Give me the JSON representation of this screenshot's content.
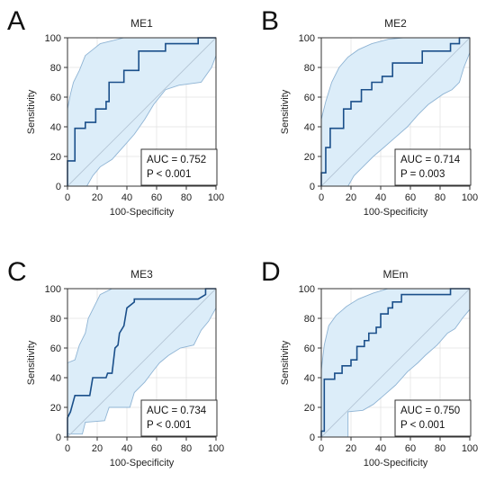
{
  "chart_data": [
    {
      "type": "line",
      "panel_letter": "A",
      "title": "ME1",
      "xlabel": "100-Specificity",
      "ylabel": "Sensitivity",
      "xlim": [
        0,
        100
      ],
      "ylim": [
        0,
        100
      ],
      "xticks": [
        0,
        20,
        40,
        60,
        80,
        100
      ],
      "yticks": [
        0,
        20,
        40,
        60,
        80,
        100
      ],
      "grid": true,
      "auc_text": "AUC = 0.752",
      "p_text": "P < 0.001",
      "roc": [
        [
          0,
          0
        ],
        [
          0,
          17
        ],
        [
          5,
          17
        ],
        [
          5,
          39
        ],
        [
          12,
          39
        ],
        [
          12,
          43
        ],
        [
          19,
          43
        ],
        [
          19,
          52
        ],
        [
          26,
          52
        ],
        [
          26,
          57
        ],
        [
          28,
          57
        ],
        [
          28,
          70
        ],
        [
          38,
          70
        ],
        [
          38,
          78
        ],
        [
          48,
          78
        ],
        [
          48,
          91
        ],
        [
          66,
          91
        ],
        [
          66,
          96
        ],
        [
          88,
          96
        ],
        [
          88,
          100
        ],
        [
          100,
          100
        ]
      ],
      "ci_upper": [
        [
          0,
          0
        ],
        [
          0,
          52
        ],
        [
          2,
          62
        ],
        [
          4,
          70
        ],
        [
          8,
          78
        ],
        [
          12,
          88
        ],
        [
          17,
          92
        ],
        [
          22,
          96
        ],
        [
          30,
          98
        ],
        [
          38,
          100
        ],
        [
          100,
          100
        ]
      ],
      "ci_lower": [
        [
          0,
          0
        ],
        [
          13,
          0
        ],
        [
          17,
          7
        ],
        [
          22,
          13
        ],
        [
          30,
          18
        ],
        [
          38,
          27
        ],
        [
          45,
          35
        ],
        [
          52,
          45
        ],
        [
          58,
          55
        ],
        [
          66,
          65
        ],
        [
          75,
          68
        ],
        [
          90,
          70
        ],
        [
          97,
          80
        ],
        [
          100,
          88
        ]
      ],
      "series": [
        {
          "name": "",
          "color": "#1a4f8a"
        }
      ],
      "colors": {
        "roc": "#1a4f8a",
        "ci_fill": "#dcedf9",
        "ci_edge": "#8fb4d4",
        "diagonal": "#b5c6d6"
      }
    },
    {
      "type": "line",
      "panel_letter": "B",
      "title": "ME2",
      "xlabel": "100-Specificity",
      "ylabel": "Sensitivity",
      "xlim": [
        0,
        100
      ],
      "ylim": [
        0,
        100
      ],
      "xticks": [
        0,
        20,
        40,
        60,
        80,
        100
      ],
      "yticks": [
        0,
        20,
        40,
        60,
        80,
        100
      ],
      "grid": true,
      "auc_text": "AUC = 0.714",
      "p_text": "P = 0.003",
      "roc": [
        [
          0,
          0
        ],
        [
          0,
          9
        ],
        [
          3,
          9
        ],
        [
          3,
          26
        ],
        [
          6,
          26
        ],
        [
          6,
          39
        ],
        [
          15,
          39
        ],
        [
          15,
          52
        ],
        [
          20,
          52
        ],
        [
          20,
          57
        ],
        [
          27,
          57
        ],
        [
          27,
          65
        ],
        [
          34,
          65
        ],
        [
          34,
          70
        ],
        [
          41,
          70
        ],
        [
          41,
          74
        ],
        [
          48,
          74
        ],
        [
          48,
          83
        ],
        [
          68,
          83
        ],
        [
          68,
          91
        ],
        [
          87,
          91
        ],
        [
          87,
          96
        ],
        [
          93,
          96
        ],
        [
          93,
          100
        ],
        [
          100,
          100
        ]
      ],
      "ci_upper": [
        [
          0,
          0
        ],
        [
          0,
          45
        ],
        [
          3,
          57
        ],
        [
          7,
          70
        ],
        [
          12,
          80
        ],
        [
          18,
          87
        ],
        [
          25,
          92
        ],
        [
          34,
          96
        ],
        [
          45,
          99
        ],
        [
          55,
          100
        ],
        [
          100,
          100
        ]
      ],
      "ci_lower": [
        [
          0,
          0
        ],
        [
          18,
          0
        ],
        [
          22,
          7
        ],
        [
          28,
          13
        ],
        [
          35,
          20
        ],
        [
          42,
          26
        ],
        [
          50,
          33
        ],
        [
          58,
          40
        ],
        [
          65,
          48
        ],
        [
          72,
          55
        ],
        [
          82,
          62
        ],
        [
          88,
          65
        ],
        [
          93,
          70
        ],
        [
          96,
          80
        ],
        [
          100,
          90
        ]
      ],
      "series": [
        {
          "name": "",
          "color": "#1a4f8a"
        }
      ],
      "colors": {
        "roc": "#1a4f8a",
        "ci_fill": "#dcedf9",
        "ci_edge": "#8fb4d4",
        "diagonal": "#b5c6d6"
      }
    },
    {
      "type": "line",
      "panel_letter": "C",
      "title": "ME3",
      "xlabel": "100-Specificity",
      "ylabel": "Sensitivity",
      "xlim": [
        0,
        100
      ],
      "ylim": [
        0,
        100
      ],
      "xticks": [
        0,
        20,
        40,
        60,
        80,
        100
      ],
      "yticks": [
        0,
        20,
        40,
        60,
        80,
        100
      ],
      "grid": true,
      "auc_text": "AUC = 0.734",
      "p_text": "P < 0.001",
      "roc": [
        [
          0,
          0
        ],
        [
          0,
          13
        ],
        [
          2,
          17
        ],
        [
          5,
          28
        ],
        [
          15,
          28
        ],
        [
          17,
          40
        ],
        [
          26,
          40
        ],
        [
          27,
          43
        ],
        [
          30,
          43
        ],
        [
          32,
          60
        ],
        [
          34,
          62
        ],
        [
          35,
          70
        ],
        [
          38,
          75
        ],
        [
          40,
          87
        ],
        [
          45,
          91
        ],
        [
          45,
          93
        ],
        [
          88,
          93
        ],
        [
          93,
          96
        ],
        [
          93,
          100
        ],
        [
          100,
          100
        ]
      ],
      "ci_upper": [
        [
          0,
          0
        ],
        [
          0,
          50
        ],
        [
          5,
          52
        ],
        [
          8,
          62
        ],
        [
          12,
          70
        ],
        [
          14,
          80
        ],
        [
          18,
          88
        ],
        [
          22,
          96
        ],
        [
          30,
          100
        ],
        [
          100,
          100
        ]
      ],
      "ci_lower": [
        [
          0,
          0
        ],
        [
          0,
          2
        ],
        [
          10,
          2
        ],
        [
          12,
          10
        ],
        [
          25,
          11
        ],
        [
          28,
          20
        ],
        [
          42,
          20
        ],
        [
          45,
          30
        ],
        [
          52,
          37
        ],
        [
          58,
          45
        ],
        [
          62,
          50
        ],
        [
          68,
          55
        ],
        [
          76,
          60
        ],
        [
          85,
          62
        ],
        [
          90,
          72
        ],
        [
          95,
          78
        ],
        [
          100,
          87
        ]
      ],
      "series": [
        {
          "name": "",
          "color": "#1a4f8a"
        }
      ],
      "colors": {
        "roc": "#1a4f8a",
        "ci_fill": "#dcedf9",
        "ci_edge": "#8fb4d4",
        "diagonal": "#b5c6d6"
      }
    },
    {
      "type": "line",
      "panel_letter": "D",
      "title": "MEm",
      "xlabel": "100-Specificity",
      "ylabel": "Sensitivity",
      "xlim": [
        0,
        100
      ],
      "ylim": [
        0,
        100
      ],
      "xticks": [
        0,
        20,
        40,
        60,
        80,
        100
      ],
      "yticks": [
        0,
        20,
        40,
        60,
        80,
        100
      ],
      "grid": true,
      "auc_text": "AUC = 0.750",
      "p_text": "P < 0.001",
      "roc": [
        [
          0,
          0
        ],
        [
          0,
          4
        ],
        [
          2,
          4
        ],
        [
          2,
          39
        ],
        [
          9,
          39
        ],
        [
          9,
          43
        ],
        [
          14,
          43
        ],
        [
          14,
          48
        ],
        [
          20,
          48
        ],
        [
          20,
          52
        ],
        [
          24,
          52
        ],
        [
          24,
          61
        ],
        [
          29,
          61
        ],
        [
          29,
          65
        ],
        [
          32,
          65
        ],
        [
          32,
          70
        ],
        [
          37,
          70
        ],
        [
          37,
          74
        ],
        [
          40,
          74
        ],
        [
          40,
          83
        ],
        [
          45,
          83
        ],
        [
          45,
          87
        ],
        [
          48,
          87
        ],
        [
          48,
          91
        ],
        [
          54,
          91
        ],
        [
          54,
          96
        ],
        [
          87,
          96
        ],
        [
          87,
          100
        ],
        [
          100,
          100
        ]
      ],
      "ci_upper": [
        [
          0,
          0
        ],
        [
          0,
          45
        ],
        [
          2,
          62
        ],
        [
          5,
          75
        ],
        [
          10,
          82
        ],
        [
          17,
          88
        ],
        [
          25,
          93
        ],
        [
          35,
          97
        ],
        [
          45,
          100
        ],
        [
          100,
          100
        ]
      ],
      "ci_lower": [
        [
          0,
          0
        ],
        [
          18,
          0
        ],
        [
          18,
          17
        ],
        [
          28,
          18
        ],
        [
          35,
          22
        ],
        [
          42,
          28
        ],
        [
          50,
          35
        ],
        [
          58,
          44
        ],
        [
          65,
          50
        ],
        [
          70,
          55
        ],
        [
          78,
          62
        ],
        [
          85,
          70
        ],
        [
          90,
          73
        ],
        [
          95,
          80
        ],
        [
          100,
          86
        ]
      ],
      "series": [
        {
          "name": "",
          "color": "#1a4f8a"
        }
      ],
      "colors": {
        "roc": "#1a4f8a",
        "ci_fill": "#dcedf9",
        "ci_edge": "#8fb4d4",
        "diagonal": "#b5c6d6"
      }
    }
  ]
}
